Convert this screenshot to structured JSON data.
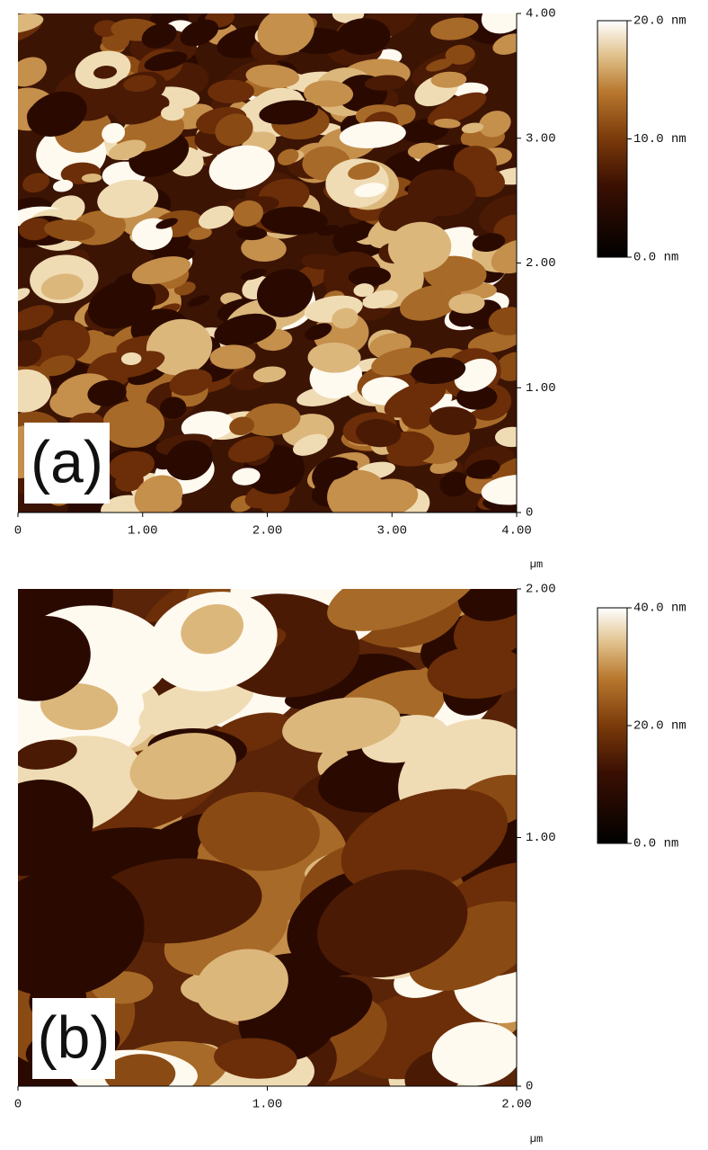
{
  "panels": [
    {
      "label": "(a)",
      "x_unit": "µm",
      "xlim": [
        0,
        4
      ],
      "ylim": [
        0,
        4
      ],
      "xticks": [
        0,
        {
          "value": 1,
          "label": "1.00"
        },
        {
          "value": 2,
          "label": "2.00"
        },
        {
          "value": 3,
          "label": "3.00"
        },
        {
          "value": 4,
          "label": "4.00"
        }
      ],
      "yticks": [
        0,
        {
          "value": 1,
          "label": "1.00"
        },
        {
          "value": 2,
          "label": "2.00"
        },
        {
          "value": 3,
          "label": "3.00"
        },
        {
          "value": 4,
          "label": "4.00"
        }
      ],
      "colorbar": {
        "lim": [
          0,
          20
        ],
        "ticks": [
          {
            "value": 20,
            "label": "20.0 nm"
          },
          {
            "value": 10,
            "label": "10.0 nm"
          },
          {
            "value": 0,
            "label": "0.0 nm"
          }
        ]
      }
    },
    {
      "label": "(b)",
      "x_unit": "µm",
      "xlim": [
        0,
        2
      ],
      "ylim": [
        0,
        2
      ],
      "xticks": [
        0,
        {
          "value": 1,
          "label": "1.00"
        },
        {
          "value": 2,
          "label": "2.00"
        }
      ],
      "yticks": [
        0,
        {
          "value": 1,
          "label": "1.00"
        },
        {
          "value": 2,
          "label": "2.00"
        }
      ],
      "colorbar": {
        "lim": [
          0,
          40
        ],
        "ticks": [
          {
            "value": 40,
            "label": "40.0 nm"
          },
          {
            "value": 20,
            "label": "20.0 nm"
          },
          {
            "value": 0,
            "label": "0.0 nm"
          }
        ]
      }
    }
  ]
}
